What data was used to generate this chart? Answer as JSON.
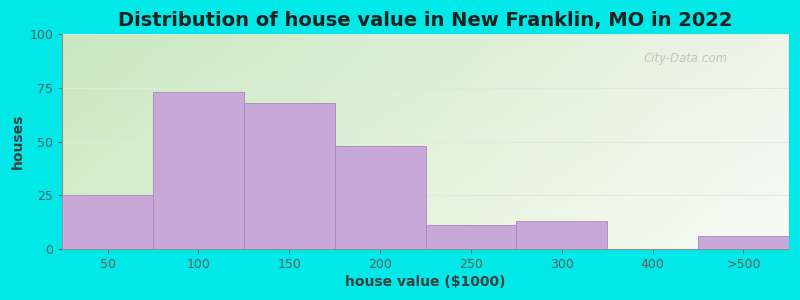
{
  "title": "Distribution of house value in New Franklin, MO in 2022",
  "xlabel": "house value ($1000)",
  "ylabel": "houses",
  "xtick_labels": [
    "50",
    "100",
    "150",
    "200",
    "250",
    "300",
    "400",
    ">500"
  ],
  "xtick_positions": [
    0,
    1,
    2,
    3,
    4,
    5,
    6,
    7
  ],
  "bar_heights": [
    25,
    73,
    68,
    48,
    11,
    13,
    0,
    6
  ],
  "bar_color": "#c8a8d8",
  "bar_edge_color": "#a888b8",
  "yticks": [
    0,
    25,
    50,
    75,
    100
  ],
  "ylim": [
    0,
    100
  ],
  "xlim": [
    -0.5,
    7.5
  ],
  "background_color": "#00e8e8",
  "grad_top_left": "#c8e8c0",
  "grad_bottom_right": "#f5f8f0",
  "title_fontsize": 14,
  "axis_label_fontsize": 10,
  "watermark_text": "City-Data.com",
  "watermark_color": "#b0c0b8",
  "figsize": [
    8.0,
    3.0
  ],
  "dpi": 100
}
